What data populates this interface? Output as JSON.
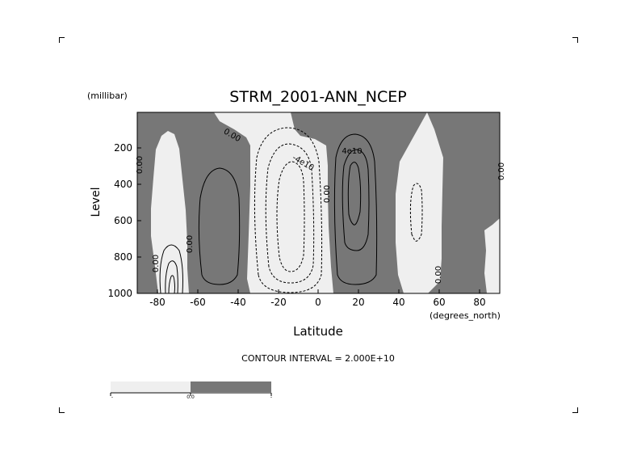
{
  "chart_data": {
    "type": "contour",
    "title": "STRM_2001-ANN_NCEP",
    "xlabel": "Latitude",
    "x_units": "(degrees_north)",
    "ylabel": "Level",
    "y_units": "(millibar)",
    "xlim": [
      -90,
      90
    ],
    "ylim": [
      1000,
      0
    ],
    "x_ticks": [
      -80,
      -60,
      -40,
      -20,
      0,
      20,
      40,
      60,
      80
    ],
    "x_tick_labels": [
      "-80",
      "-60",
      "-40",
      "-20",
      "0",
      "20",
      "40",
      "60",
      "80"
    ],
    "y_ticks": [
      200,
      400,
      600,
      800,
      1000
    ],
    "y_tick_labels": [
      "200",
      "400",
      "600",
      "800",
      "1000"
    ],
    "contour_interval_text": "CONTOUR INTERVAL = 2.000E+10",
    "contour_labels": [
      {
        "text": "0.00",
        "lat": 62,
        "level": 870
      },
      {
        "text": "0.00",
        "lat": -77,
        "level": 830
      },
      {
        "text": "0.00",
        "lat": -64,
        "level": 740
      },
      {
        "text": "0.00",
        "lat": 5,
        "level": 450
      },
      {
        "text": "0.00",
        "lat": -86,
        "level": 320
      },
      {
        "text": "0.00",
        "lat": 90,
        "level": 320
      },
      {
        "text": "0.00",
        "lat": -45,
        "level": 100
      },
      {
        "text": "-4e10",
        "lat": -11,
        "level": 250
      },
      {
        "text": "4e10",
        "lat": 17,
        "level": 180
      }
    ],
    "colorbar": {
      "colors": [
        "#efefef",
        "#777777"
      ],
      "labels": [
        "-",
        "0.0",
        "-"
      ]
    },
    "colors": {
      "positive_fill": "#777777",
      "negative_fill": "#efefef",
      "line": "#000000"
    }
  }
}
